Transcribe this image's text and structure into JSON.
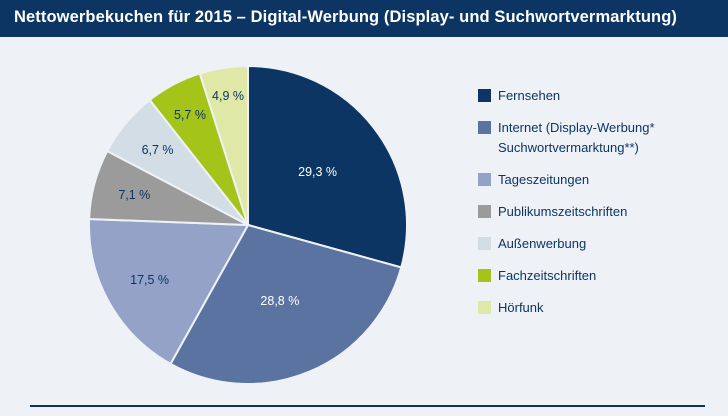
{
  "chart_data": {
    "type": "pie",
    "title": "Nettowerbekuchen für 2015 – Digital-Werbung (Display- und Suchwortvermarktung)",
    "slices": [
      {
        "name": "Fernsehen",
        "value": 29.3,
        "label": "29,3 %",
        "color": "#0c3563",
        "label_color": "#ffffff"
      },
      {
        "name": "Internet (Display-Werbung*\nSuchwortvermarktung**)",
        "value": 28.8,
        "label": "28,8 %",
        "color": "#5a73a0",
        "label_color": "#ffffff"
      },
      {
        "name": "Tageszeitungen",
        "value": 17.5,
        "label": "17,5 %",
        "color": "#93a2c6",
        "label_color": "#0c3563"
      },
      {
        "name": "Publikumszeitschriften",
        "value": 7.1,
        "label": "7,1 %",
        "color": "#9b9b9b",
        "label_color": "#0c3563"
      },
      {
        "name": "Außenwerbung",
        "value": 6.7,
        "label": "6,7 %",
        "color": "#d3dde6",
        "label_color": "#0c3563"
      },
      {
        "name": "Fachzeitschriften",
        "value": 5.7,
        "label": "5,7 %",
        "color": "#a5c41a",
        "label_color": "#0c3563"
      },
      {
        "name": "Hörfunk",
        "value": 4.9,
        "label": "4,9 %",
        "color": "#dfe8a6",
        "label_color": "#0c3563"
      }
    ],
    "legend_position": "right",
    "start": "12 o'clock, clockwise"
  }
}
